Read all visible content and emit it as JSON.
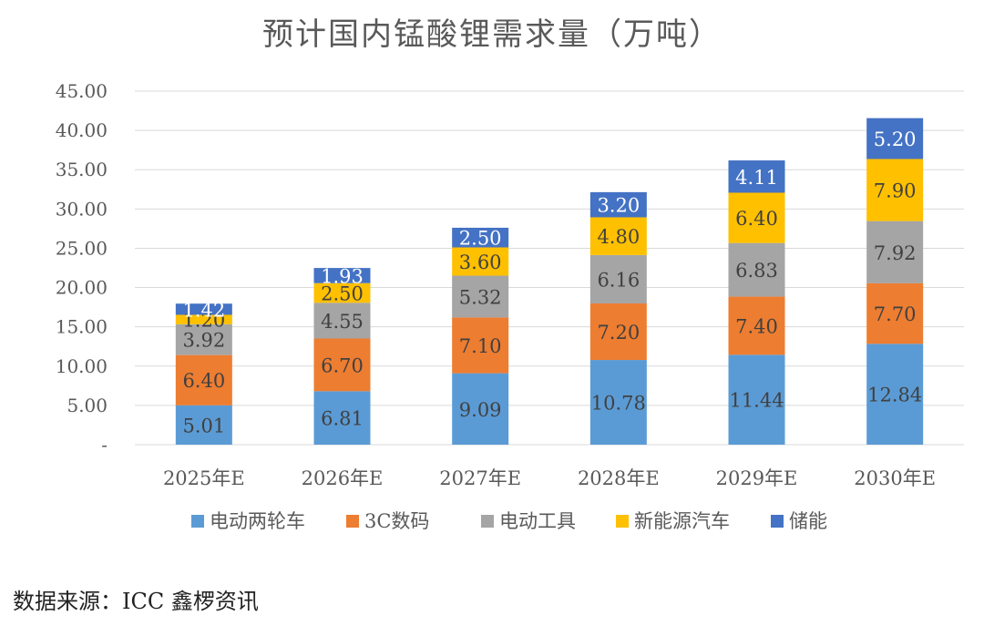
{
  "chart_data": {
    "type": "bar",
    "stacked": true,
    "title": "预计国内锰酸锂需求量（万吨）",
    "categories": [
      "2025年E",
      "2026年E",
      "2027年E",
      "2028年E",
      "2029年E",
      "2030年E"
    ],
    "series": [
      {
        "name": "电动两轮车",
        "color": "#5b9bd5",
        "values": [
          5.01,
          6.81,
          9.09,
          10.78,
          11.44,
          12.84
        ]
      },
      {
        "name": "3C数码",
        "color": "#ed7d31",
        "values": [
          6.4,
          6.7,
          7.1,
          7.2,
          7.4,
          7.7
        ]
      },
      {
        "name": "电动工具",
        "color": "#a5a5a5",
        "values": [
          3.92,
          4.55,
          5.32,
          6.16,
          6.83,
          7.92
        ]
      },
      {
        "name": "新能源汽车",
        "color": "#ffc000",
        "values": [
          1.2,
          2.5,
          3.6,
          4.8,
          6.4,
          7.9
        ]
      },
      {
        "name": "储能",
        "color": "#4472c4",
        "values": [
          1.42,
          1.93,
          2.5,
          3.2,
          4.11,
          5.2
        ]
      }
    ],
    "y_ticks": [
      "-",
      "5.00",
      "10.00",
      "15.00",
      "20.00",
      "25.00",
      "30.00",
      "35.00",
      "40.00",
      "45.00"
    ],
    "ylim": [
      0,
      45
    ],
    "grid": true,
    "legend": "bottom"
  },
  "source": "数据来源：ICC 鑫椤资讯"
}
